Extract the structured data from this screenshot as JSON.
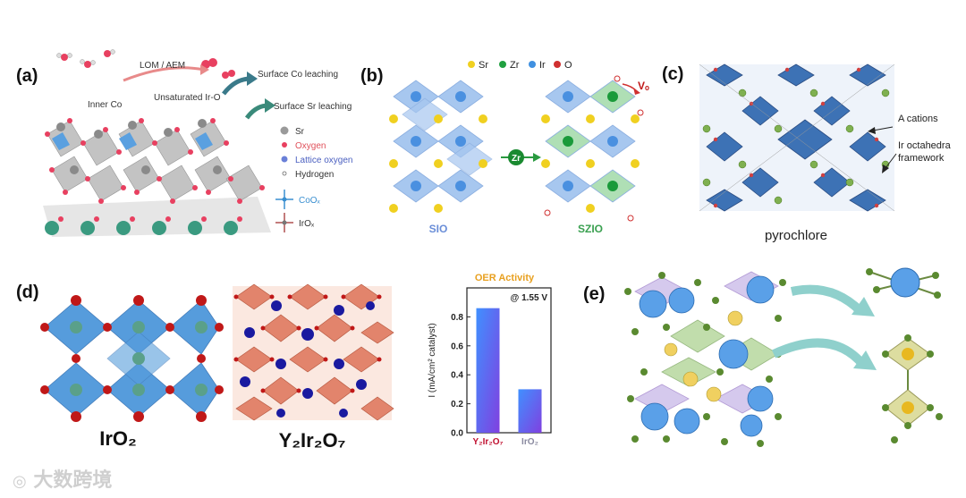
{
  "panel_a": {
    "label": "(a)",
    "lom_aem": "LOM / AEM",
    "inner_co": "Inner Co",
    "unsaturated_ir_o": "Unsaturated Ir-O",
    "surface_co": "Surface Co leaching",
    "surface_sr": "Surface Sr leaching",
    "legend": {
      "sr": "Sr",
      "oxygen": "Oxygen",
      "lattice_oxygen": "Lattice oxygen",
      "hydrogen": "Hydrogen",
      "coox": "CoOₓ",
      "irox": "IrOₓ"
    },
    "colors": {
      "oxygen_label": "#e0505a",
      "lattice_label": "#4a5fc0",
      "coox_label": "#3a8fd0",
      "sr": "#9a9a9a",
      "o": "#e84060"
    }
  },
  "panel_b": {
    "label": "(b)",
    "legend": [
      "Sr",
      "Zr",
      "Ir",
      "O"
    ],
    "legend_colors": [
      "#f0d020",
      "#20a040",
      "#4090e0",
      "#d03030"
    ],
    "zr_bubble": "Zr",
    "vo": "Vₒ",
    "left_caption": "SIO",
    "right_caption": "SZIO",
    "caption_colors": {
      "sio": "#6a8ed8",
      "szio": "#3aa050"
    }
  },
  "panel_c": {
    "label": "(c)",
    "a_cations": "A cations",
    "ir_octahedra_1": "Ir octahedra",
    "ir_octahedra_2": "framework",
    "caption": "pyrochlore"
  },
  "panel_d": {
    "label": "(d)",
    "iro2_caption": "IrO₂",
    "y2ir2o7_caption": "Y₂Ir₂O₇",
    "colors": {
      "iro2_oct": "#3f8fd8",
      "o": "#c01818",
      "y2_oct": "#e07a60",
      "y": "#1a1aa0"
    }
  },
  "panel_e": {
    "label": "(e)",
    "colors": {
      "big": "#5aa0e8",
      "small": "#5a8a30",
      "yellow": "#f0d060"
    }
  },
  "chart_data": {
    "type": "bar",
    "title": "OER Activity",
    "annotation": "@ 1.55 V",
    "ylabel": "I (mA/cm² catalyst)",
    "xlabel": "",
    "categories": [
      "Y₂Ir₂O₇",
      "IrO₂"
    ],
    "values": [
      0.86,
      0.3
    ],
    "ylim": [
      0.0,
      1.0
    ],
    "yticks": [
      "0.0",
      "0.2",
      "0.4",
      "0.6",
      "0.8"
    ],
    "category_colors": [
      "#c01030",
      "#8a8aa0"
    ],
    "title_color": "#e8a020",
    "bar_gradient": [
      "#4090ff",
      "#8040e0"
    ]
  },
  "watermark": "大数跨境"
}
